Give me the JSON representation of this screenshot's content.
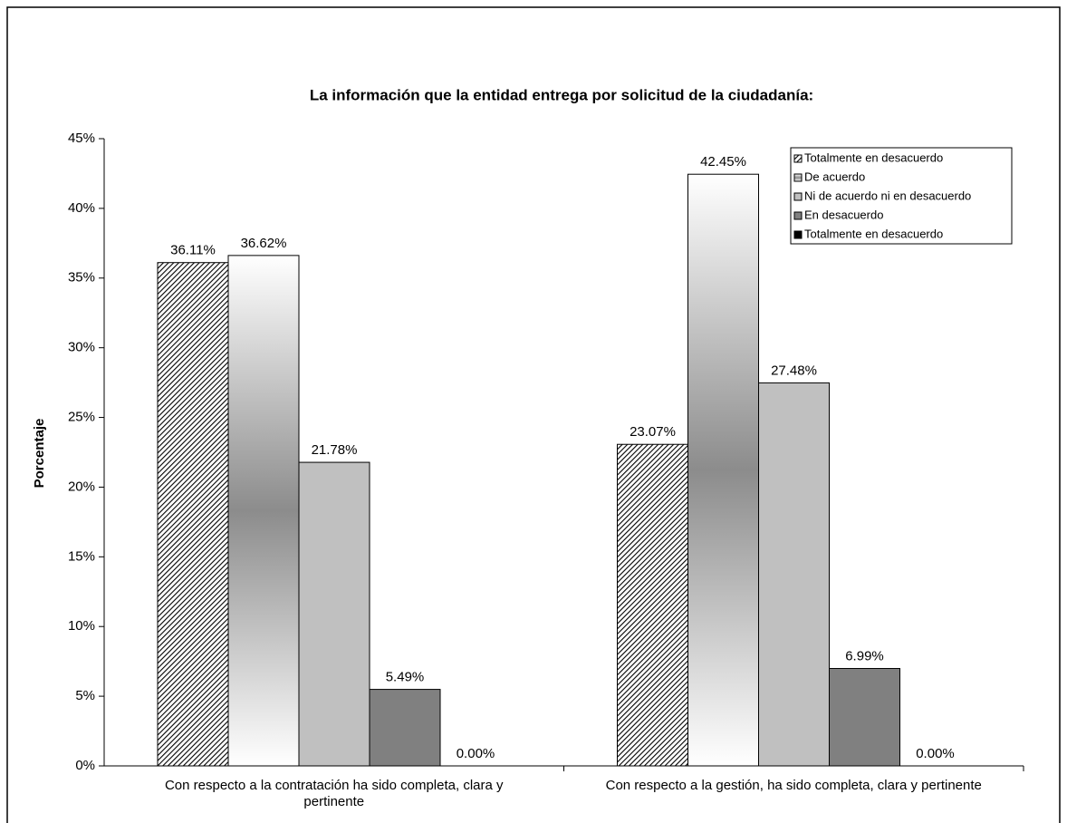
{
  "chart_data": {
    "type": "bar",
    "title": "La información que la entidad entrega por solicitud de la ciudadanía:",
    "y_label": "Porcentaje",
    "categories": [
      "Con respecto a la contratación ha sido completa, clara y pertinente",
      "Con respecto a la gestión, ha sido completa, clara y pertinente"
    ],
    "series": [
      {
        "name": "Totalmente en desacuerdo",
        "color": "#000000",
        "style": "hatch",
        "values": [
          36.11,
          23.07
        ],
        "value_labels": [
          "36.11%",
          "23.07%"
        ]
      },
      {
        "name": "De acuerdo",
        "color": "#8c8c8c",
        "style": "gradient",
        "values": [
          36.62,
          42.45
        ],
        "value_labels": [
          "36.62%",
          "42.45%"
        ]
      },
      {
        "name": "Ni de acuerdo ni en desacuerdo",
        "color": "#c0c0c0",
        "style": "solid",
        "values": [
          21.78,
          27.48
        ],
        "value_labels": [
          "21.78%",
          "27.48%"
        ]
      },
      {
        "name": "En desacuerdo",
        "color": "#808080",
        "style": "solid",
        "values": [
          5.49,
          6.99
        ],
        "value_labels": [
          "5.49%",
          "6.99%"
        ]
      },
      {
        "name": "Totalmente en desacuerdo",
        "color": "#000000",
        "style": "solid",
        "values": [
          0,
          0
        ],
        "value_labels": [
          "0.00%",
          "0.00%"
        ]
      }
    ],
    "ylim": [
      0,
      45
    ],
    "yticks": [
      {
        "value": 0,
        "label": "0%"
      },
      {
        "value": 5,
        "label": "5%"
      },
      {
        "value": 10,
        "label": "10%"
      },
      {
        "value": 15,
        "label": "15%"
      },
      {
        "value": 20,
        "label": "20%"
      },
      {
        "value": 25,
        "label": "25%"
      },
      {
        "value": 30,
        "label": "30%"
      },
      {
        "value": 35,
        "label": "35%"
      },
      {
        "value": 40,
        "label": "40%"
      },
      {
        "value": 45,
        "label": "45%"
      }
    ],
    "legend": "top-right"
  }
}
